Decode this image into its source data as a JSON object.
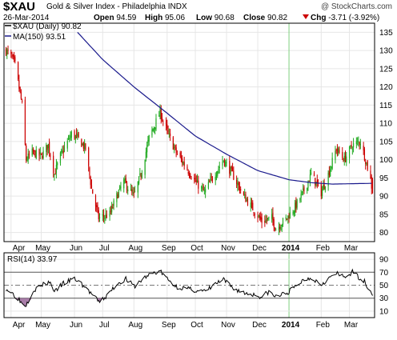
{
  "header": {
    "symbol": "$XAU",
    "name": "Gold & Silver Index - Philadelphia",
    "exchange": "INDX",
    "watermark": "@ StockCharts.com",
    "date": "26-Mar-2014",
    "open_label": "Open",
    "open": "94.59",
    "high_label": "High",
    "high": "95.06",
    "low_label": "Low",
    "low": "90.68",
    "close_label": "Close",
    "close": "90.82",
    "chg_label": "Chg",
    "chg": "-3.71 (-3.92%)",
    "chg_icon": "down-triangle-icon"
  },
  "colors": {
    "up": "#22aa22",
    "down": "#cc0000",
    "ma": "#1a1a8c",
    "rsi": "#000000",
    "rsi_fill": "#996699",
    "grid": "#e6e6e6",
    "divider": "#7fcf7f"
  },
  "chart_data": [
    {
      "type": "candlestick",
      "legend": [
        "$XAU (Daily) 90.82",
        "MA(150) 93.51"
      ],
      "ylim": [
        77.5,
        137.5
      ],
      "yticks": [
        80,
        85,
        90,
        95,
        100,
        105,
        110,
        115,
        120,
        125,
        130,
        135
      ],
      "xticks": [
        "Apr",
        "May",
        "Jun",
        "Jul",
        "Aug",
        "Sep",
        "Oct",
        "Nov",
        "Dec",
        "2014",
        "Feb",
        "Mar"
      ],
      "series": [
        {
          "name": "$XAU (Daily)",
          "anchors": [
            [
              "2013-03-27",
              130
            ],
            [
              "2013-04-02",
              128
            ],
            [
              "2013-04-05",
              126
            ],
            [
              "2013-04-12",
              115
            ],
            [
              "2013-04-16",
              100
            ],
            [
              "2013-04-22",
              102
            ],
            [
              "2013-05-01",
              101
            ],
            [
              "2013-05-08",
              104
            ],
            [
              "2013-05-14",
              96
            ],
            [
              "2013-05-20",
              101
            ],
            [
              "2013-05-31",
              107
            ],
            [
              "2013-06-06",
              106
            ],
            [
              "2013-06-14",
              103
            ],
            [
              "2013-06-20",
              92
            ],
            [
              "2013-06-27",
              84
            ],
            [
              "2013-07-08",
              85
            ],
            [
              "2013-07-15",
              90
            ],
            [
              "2013-07-22",
              94
            ],
            [
              "2013-08-01",
              90
            ],
            [
              "2013-08-08",
              96
            ],
            [
              "2013-08-16",
              106
            ],
            [
              "2013-08-27",
              113
            ],
            [
              "2013-09-04",
              107
            ],
            [
              "2013-09-12",
              102
            ],
            [
              "2013-09-24",
              97
            ],
            [
              "2013-10-01",
              94
            ],
            [
              "2013-10-10",
              91
            ],
            [
              "2013-10-18",
              95
            ],
            [
              "2013-10-29",
              100
            ],
            [
              "2013-11-07",
              96
            ],
            [
              "2013-11-18",
              90
            ],
            [
              "2013-11-26",
              87
            ],
            [
              "2013-12-06",
              83
            ],
            [
              "2013-12-16",
              84
            ],
            [
              "2013-12-20",
              81
            ],
            [
              "2013-12-31",
              84
            ],
            [
              "2014-01-08",
              87
            ],
            [
              "2014-01-16",
              91
            ],
            [
              "2014-01-24",
              96
            ],
            [
              "2014-02-03",
              91
            ],
            [
              "2014-02-10",
              96
            ],
            [
              "2014-02-18",
              103
            ],
            [
              "2014-02-26",
              100
            ],
            [
              "2014-03-06",
              104
            ],
            [
              "2014-03-14",
              105
            ],
            [
              "2014-03-20",
              99
            ],
            [
              "2014-03-24",
              94.6
            ],
            [
              "2014-03-26",
              90.82
            ]
          ]
        },
        {
          "name": "MA(150)",
          "anchors": [
            [
              "2013-06-06",
              135
            ],
            [
              "2013-07-01",
              127.5
            ],
            [
              "2013-08-01",
              120
            ],
            [
              "2013-09-02",
              113
            ],
            [
              "2013-10-01",
              106.5
            ],
            [
              "2013-11-01",
              101.5
            ],
            [
              "2013-12-02",
              97
            ],
            [
              "2014-01-02",
              94.5
            ],
            [
              "2014-01-24",
              93.7
            ],
            [
              "2014-02-14",
              93.3
            ],
            [
              "2014-03-03",
              93.4
            ],
            [
              "2014-03-26",
              93.51
            ]
          ]
        }
      ]
    },
    {
      "type": "line",
      "legend": [
        "RSI(14) 33.97"
      ],
      "ylim": [
        0,
        100
      ],
      "yticks": [
        10,
        30,
        50,
        70,
        90
      ],
      "xticks": [
        "Apr",
        "May",
        "Jun",
        "Jul",
        "Aug",
        "Sep",
        "Oct",
        "Nov",
        "Dec",
        "2014",
        "Feb",
        "Mar"
      ],
      "series": [
        {
          "name": "RSI(14)",
          "anchors": [
            [
              "2013-03-27",
              45
            ],
            [
              "2013-04-02",
              38
            ],
            [
              "2013-04-08",
              30
            ],
            [
              "2013-04-12",
              22
            ],
            [
              "2013-04-16",
              20
            ],
            [
              "2013-04-23",
              42
            ],
            [
              "2013-05-02",
              50
            ],
            [
              "2013-05-09",
              55
            ],
            [
              "2013-05-15",
              40
            ],
            [
              "2013-05-22",
              52
            ],
            [
              "2013-06-03",
              60
            ],
            [
              "2013-06-10",
              52
            ],
            [
              "2013-06-19",
              38
            ],
            [
              "2013-06-27",
              24
            ],
            [
              "2013-07-05",
              33
            ],
            [
              "2013-07-15",
              52
            ],
            [
              "2013-07-24",
              60
            ],
            [
              "2013-08-01",
              48
            ],
            [
              "2013-08-12",
              62
            ],
            [
              "2013-08-19",
              68
            ],
            [
              "2013-08-27",
              72
            ],
            [
              "2013-09-04",
              58
            ],
            [
              "2013-09-12",
              48
            ],
            [
              "2013-09-24",
              44
            ],
            [
              "2013-10-02",
              42
            ],
            [
              "2013-10-11",
              40
            ],
            [
              "2013-10-21",
              52
            ],
            [
              "2013-10-29",
              58
            ],
            [
              "2013-11-07",
              46
            ],
            [
              "2013-11-18",
              38
            ],
            [
              "2013-11-27",
              36
            ],
            [
              "2013-12-06",
              32
            ],
            [
              "2013-12-13",
              40
            ],
            [
              "2013-12-19",
              32
            ],
            [
              "2013-12-31",
              38
            ],
            [
              "2014-01-09",
              48
            ],
            [
              "2014-01-16",
              58
            ],
            [
              "2014-01-24",
              62
            ],
            [
              "2014-02-03",
              52
            ],
            [
              "2014-02-10",
              60
            ],
            [
              "2014-02-18",
              68
            ],
            [
              "2014-02-26",
              62
            ],
            [
              "2014-03-06",
              70
            ],
            [
              "2014-03-13",
              62
            ],
            [
              "2014-03-19",
              54
            ],
            [
              "2014-03-24",
              40
            ],
            [
              "2014-03-26",
              33.97
            ]
          ]
        }
      ]
    }
  ]
}
